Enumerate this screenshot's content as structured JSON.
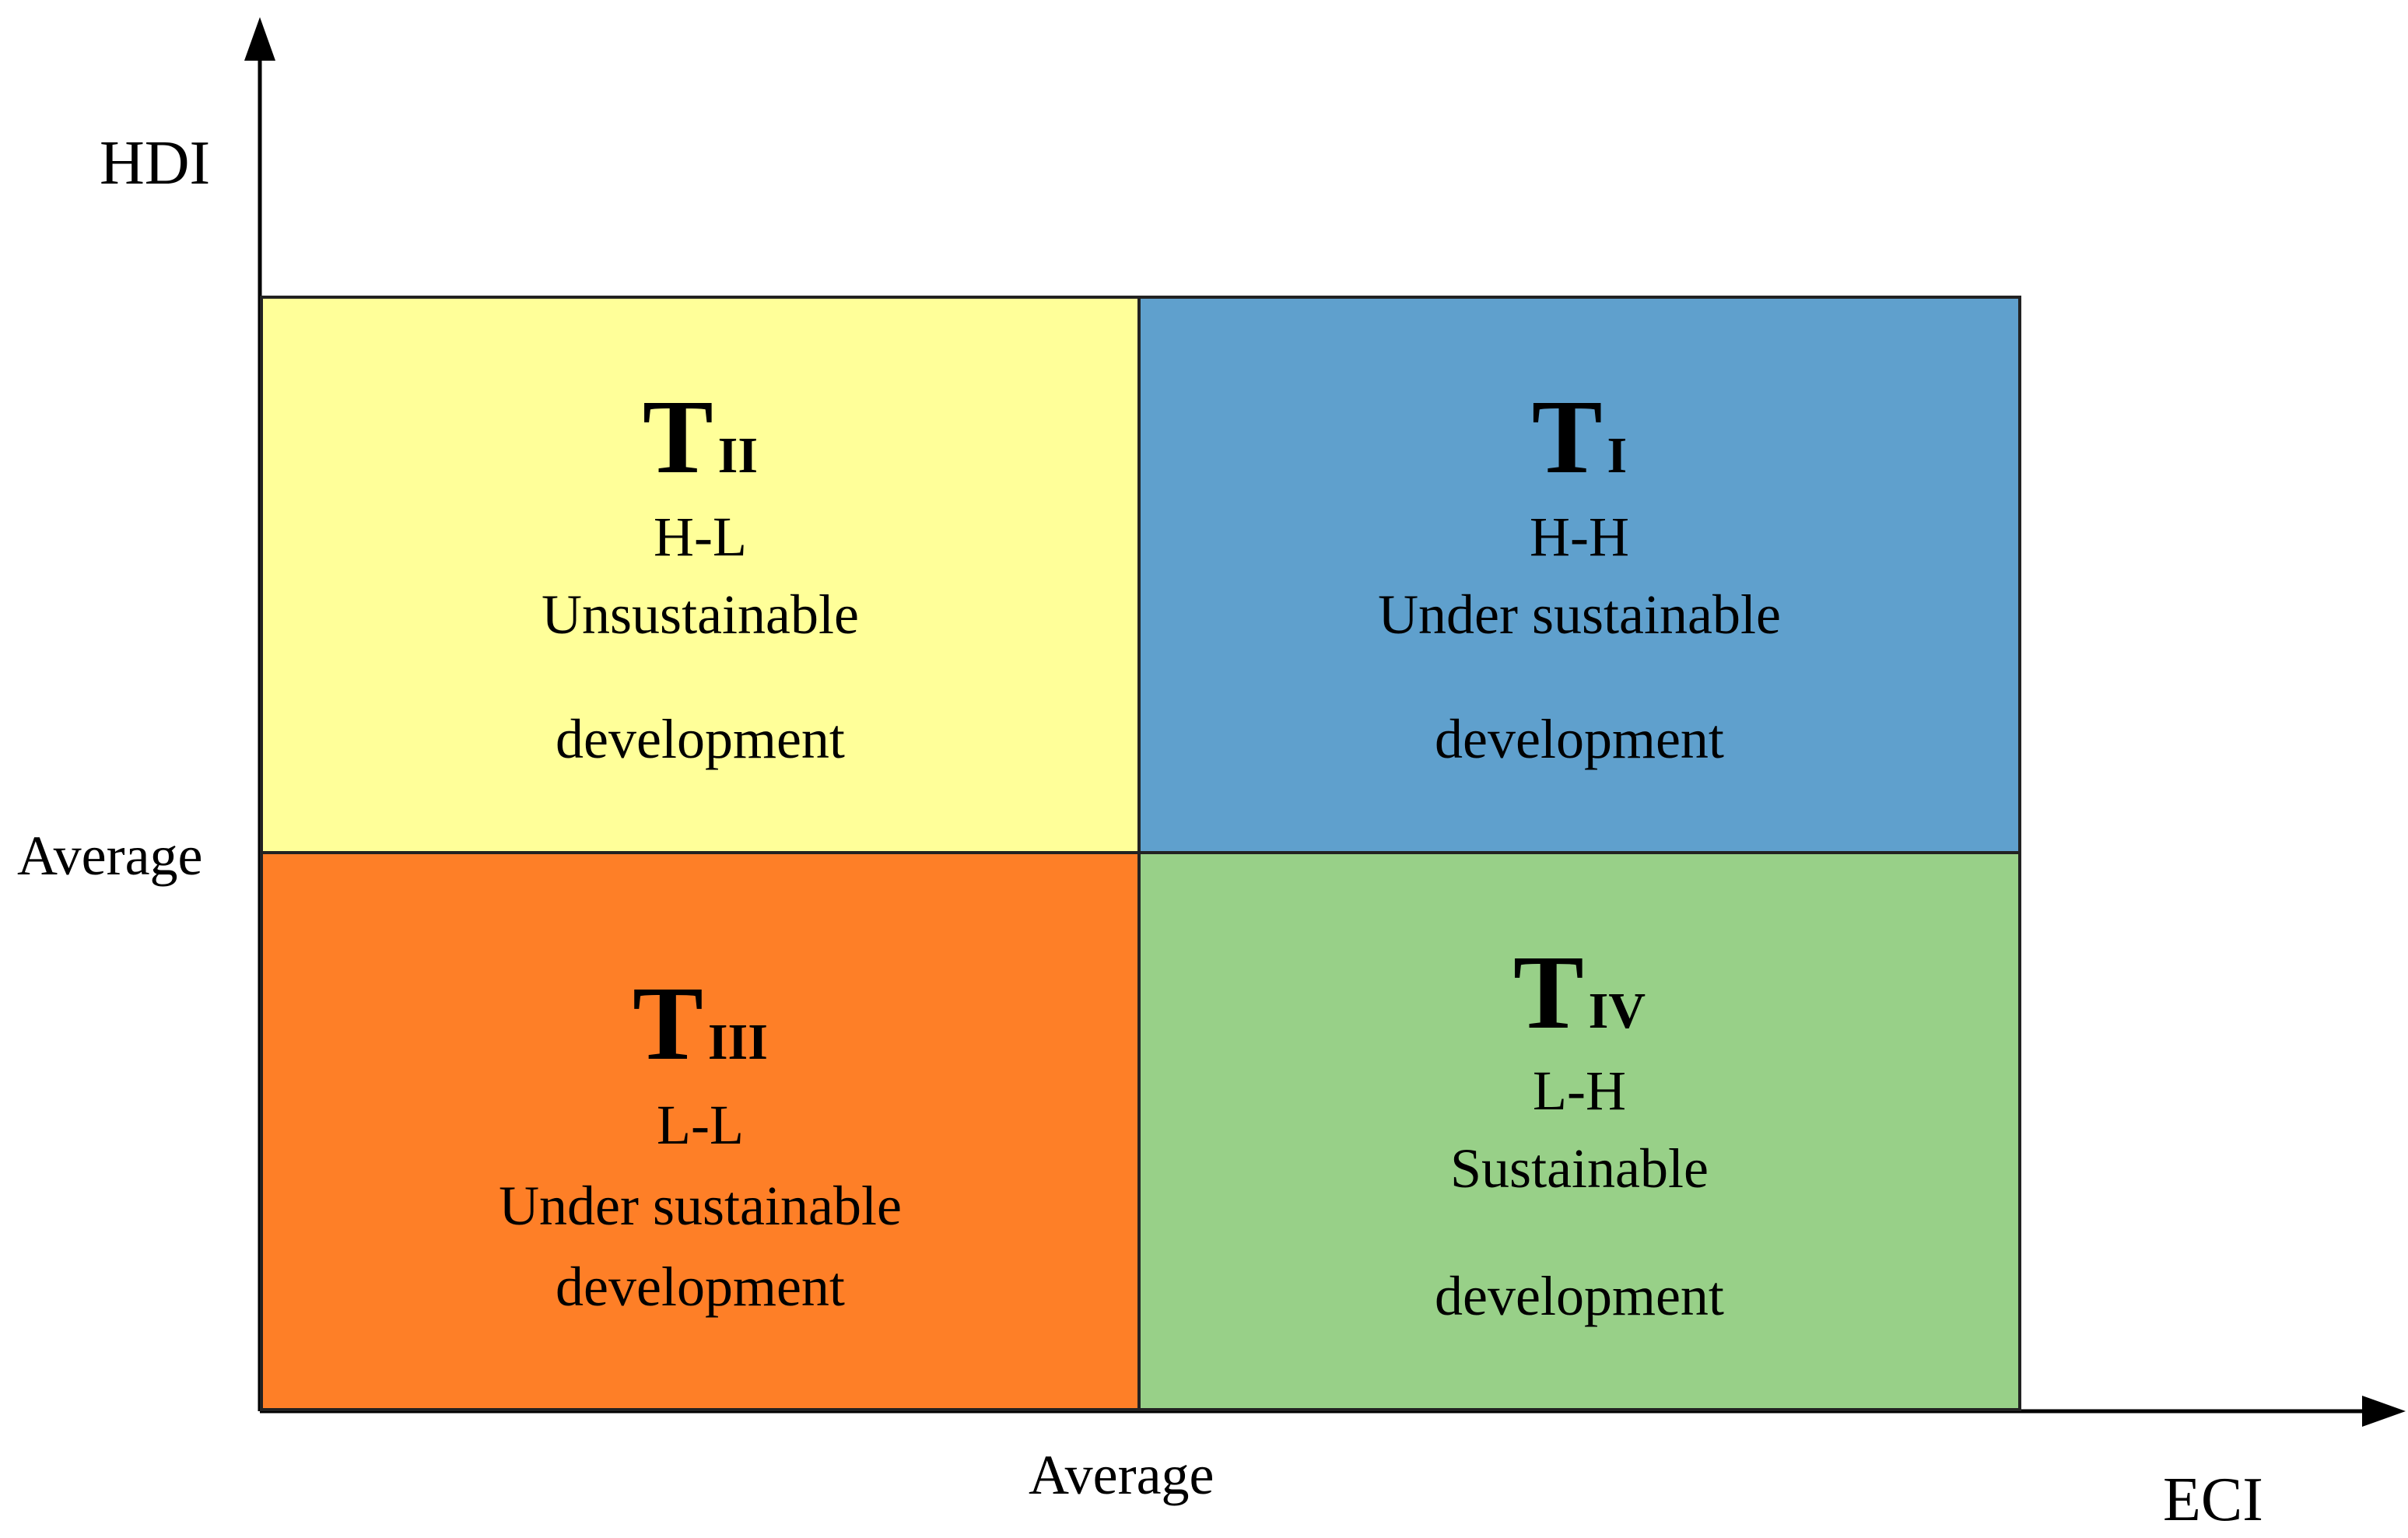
{
  "axes": {
    "y_label": "HDI",
    "x_label": "ECI",
    "y_average_label": "Average",
    "x_average_label": "Average"
  },
  "quadrants": {
    "top_left": {
      "title": "T",
      "subscript": "II",
      "code": "H-L",
      "line1": "Unsustainable",
      "line2": "development",
      "color": "#FFFF99"
    },
    "top_right": {
      "title": "T",
      "subscript": "I",
      "code": "H-H",
      "line1": "Under sustainable",
      "line2": "development",
      "color": "#5FA0CD"
    },
    "bottom_left": {
      "title": "T",
      "subscript": "III",
      "code": "L-L",
      "line1": "Under sustainable",
      "line2": "development",
      "color": "#FE7F27"
    },
    "bottom_right": {
      "title": "T",
      "subscript": "IV",
      "code": "L-H",
      "line1": "Sustainable",
      "line2": "development",
      "color": "#98D088"
    }
  }
}
